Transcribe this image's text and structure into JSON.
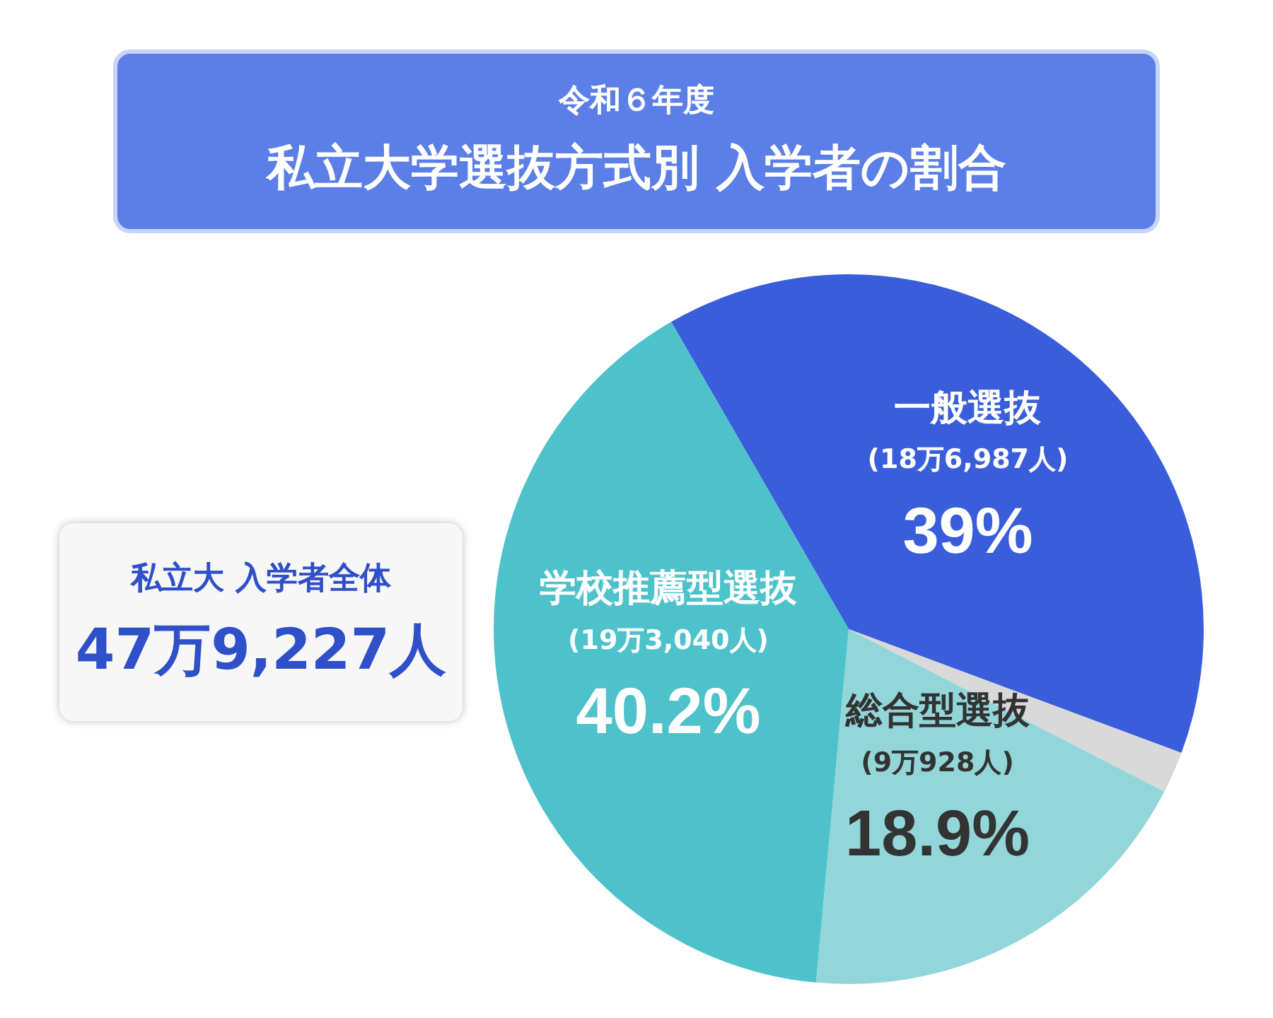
{
  "chart_data": {
    "type": "pie",
    "subtitle": "令和６年度",
    "title": "私立大学選抜方式別 入学者の割合",
    "categories": [
      "一般選抜 (18万6,987人)",
      null,
      "総合型選抜 (9万928人)",
      "学校推薦型選抜 (19万3,040人)"
    ],
    "values": [
      39,
      1.9,
      18.9,
      40.2
    ],
    "value_labels": [
      "39%",
      null,
      "18.9%",
      "40.2%"
    ],
    "colors": [
      "#3a5edb",
      "#d9d9d9",
      "#93d6d9",
      "#4ec2ca"
    ],
    "legend": false,
    "annotations": [
      "私立大 入学者全体",
      "47万9,227人"
    ]
  }
}
